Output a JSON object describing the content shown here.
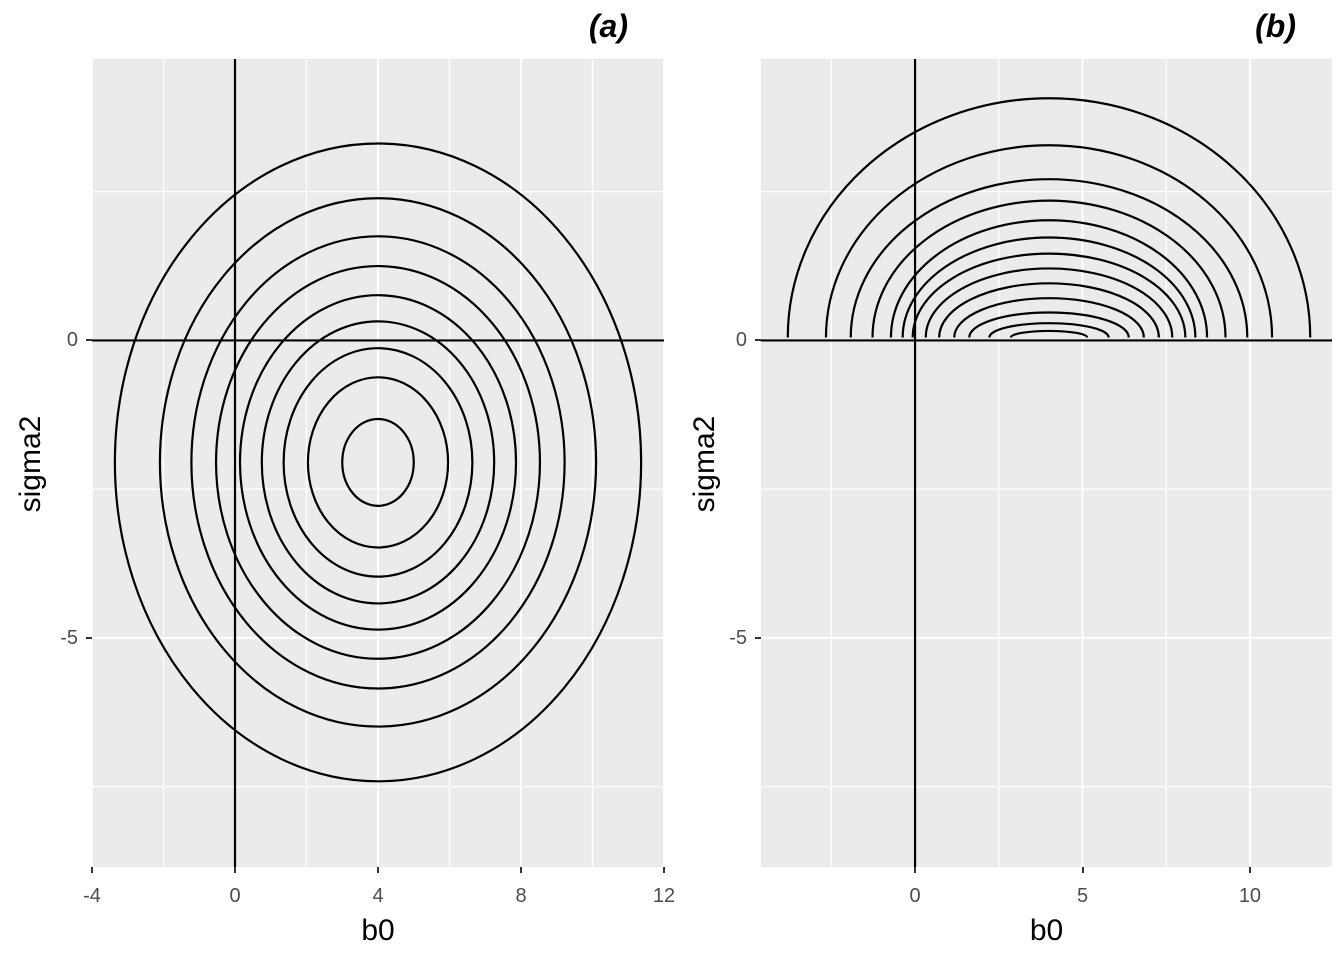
{
  "figure": {
    "background": "#FFFFFF",
    "panel_background": "#EBEBEB",
    "grid_color": "#FFFFFF",
    "contour_color": "#000000",
    "axis_line_color": "#000000",
    "tick_mark_color": "#333333",
    "tick_label_color": "#4D4D4D",
    "text_color": "#000000"
  },
  "chart_data": [
    {
      "id": "a",
      "type": "contour",
      "title": "(a)",
      "xlabel": "b0",
      "ylabel": "sigma2",
      "xlim": [
        -4,
        12
      ],
      "ylim": [
        -8.85,
        4.73
      ],
      "x_major_ticks": [
        -4,
        0,
        4,
        8,
        12
      ],
      "x_tick_labels": [
        "-4",
        "0",
        "4",
        "8",
        "12"
      ],
      "x_minor_gridlines": [
        -2,
        2,
        6,
        10
      ],
      "y_major_ticks": [
        0,
        -5
      ],
      "y_tick_labels": [
        "0",
        "-5"
      ],
      "y_minor_gridlines": [
        2.5,
        -2.5,
        -7.5
      ],
      "grid": true,
      "legend": "none",
      "reference_lines": {
        "vertical_x": 0,
        "horizontal_y": 0
      },
      "contour_center": [
        4,
        -2.05
      ],
      "ellipses_rx_ry": [
        [
          7.36,
          5.36
        ],
        [
          6.1,
          4.44
        ],
        [
          5.22,
          3.8
        ],
        [
          4.53,
          3.3
        ],
        [
          3.86,
          2.81
        ],
        [
          3.25,
          2.37
        ],
        [
          2.64,
          1.92
        ],
        [
          1.96,
          1.43
        ],
        [
          1.0,
          0.73
        ]
      ]
    },
    {
      "id": "b",
      "type": "contour-half",
      "title": "(b)",
      "xlabel": "b0",
      "ylabel": "sigma2",
      "xlim": [
        -4.6,
        12.45
      ],
      "ylim": [
        -8.85,
        4.73
      ],
      "x_major_ticks": [
        0,
        5,
        10
      ],
      "x_tick_labels": [
        "0",
        "5",
        "10"
      ],
      "x_minor_gridlines": [
        -2.5,
        2.5,
        7.5
      ],
      "y_major_ticks": [
        0,
        -5
      ],
      "y_tick_labels": [
        "0",
        "-5"
      ],
      "y_minor_gridlines": [
        2.5,
        -2.5,
        -7.5
      ],
      "grid": true,
      "legend": "none",
      "reference_lines": {
        "vertical_x": 0,
        "horizontal_y": 0
      },
      "contour_center": [
        4,
        0
      ],
      "arc_baseline_y": 0.05,
      "arcs_rx_ry": [
        [
          7.8,
          4.07
        ],
        [
          6.66,
          3.28
        ],
        [
          5.92,
          2.71
        ],
        [
          5.27,
          2.35
        ],
        [
          4.72,
          2.02
        ],
        [
          4.37,
          1.73
        ],
        [
          4.07,
          1.46
        ],
        [
          3.68,
          1.21
        ],
        [
          3.28,
          0.96
        ],
        [
          2.83,
          0.71
        ],
        [
          2.38,
          0.47
        ],
        [
          1.78,
          0.29
        ],
        [
          1.14,
          0.16
        ]
      ]
    }
  ]
}
